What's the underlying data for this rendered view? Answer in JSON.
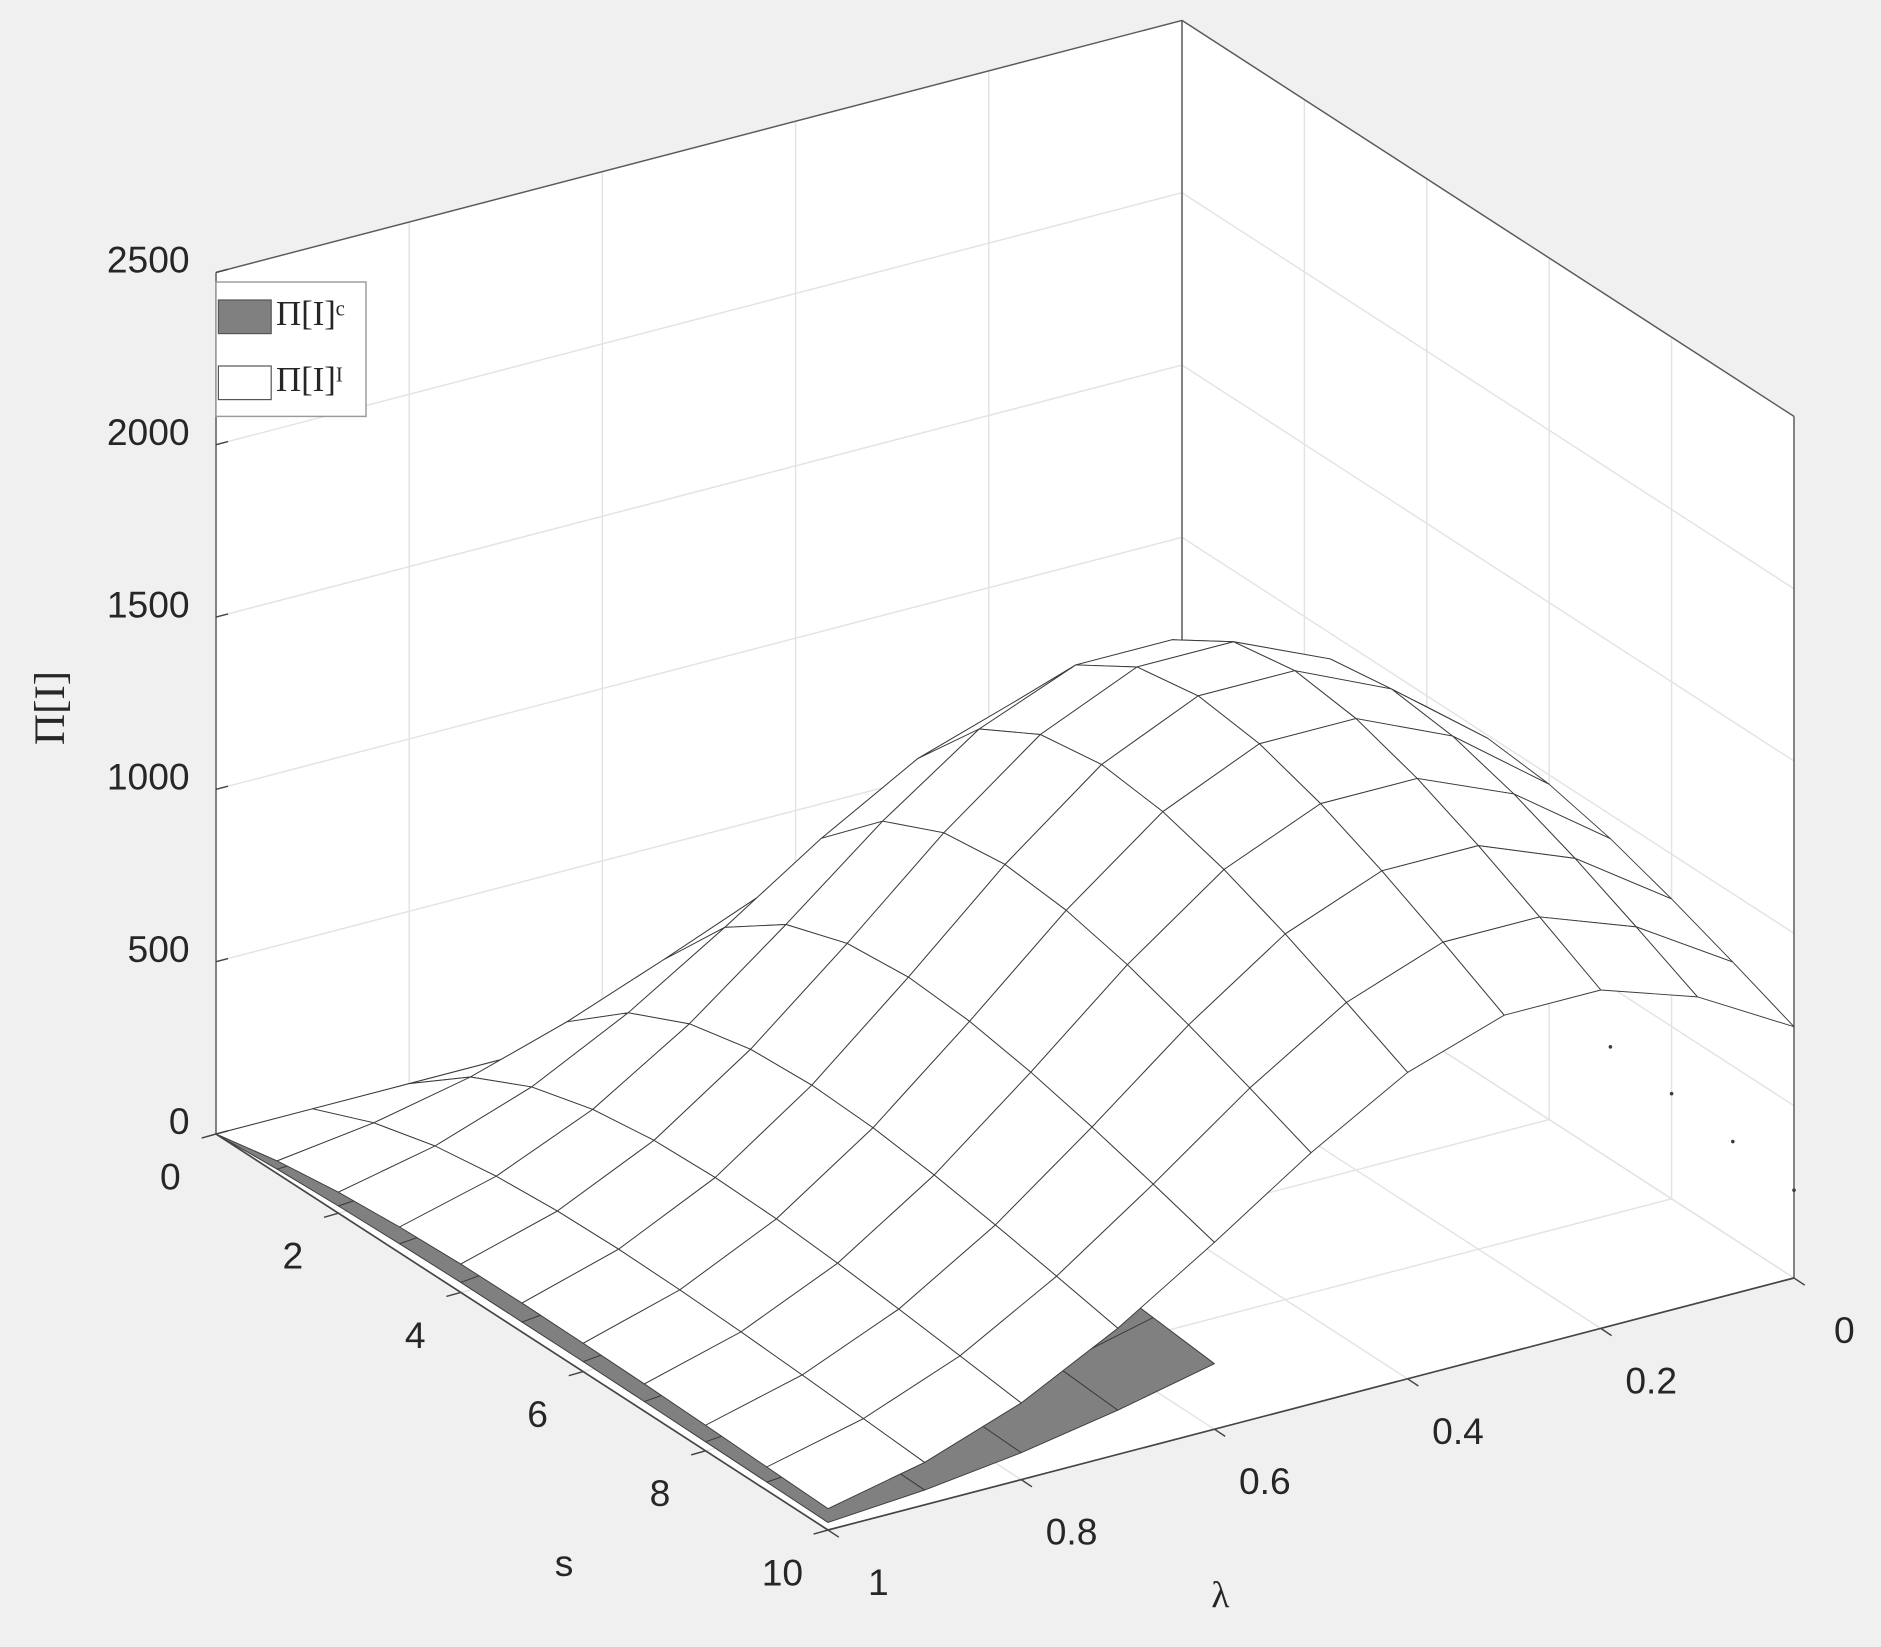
{
  "chart_data": {
    "type": "surface",
    "xlabel": "s",
    "ylabel": "λ",
    "zlabel": "Π[I]",
    "x": [
      0,
      1,
      2,
      3,
      4,
      5,
      6,
      7,
      8,
      9,
      10
    ],
    "y": [
      0,
      0.1,
      0.2,
      0.3,
      0.4,
      0.5,
      0.6,
      0.7,
      0.8,
      0.9,
      1
    ],
    "xlim": [
      0,
      10
    ],
    "ylim": [
      0,
      1
    ],
    "zlim": [
      0,
      2500
    ],
    "xticks": [
      0,
      2,
      4,
      6,
      8,
      10
    ],
    "yticks": [
      0,
      0.2,
      0.4,
      0.6,
      0.8,
      1
    ],
    "zticks": [
      0,
      500,
      1000,
      1500,
      2000,
      2500
    ],
    "grid": true,
    "legend": "upper left",
    "edgecolor": "#3c3c3c",
    "series": [
      {
        "name": "Π[I]ᶜ",
        "color": "#808080",
        "values": [
          [
            0,
            0,
            0,
            0,
            0,
            0,
            0,
            0,
            0,
            0,
            0
          ],
          [
            154,
            188,
            208,
            208,
            188,
            154,
            115,
            77,
            47,
            26,
            13
          ],
          [
            253,
            308,
            340,
            340,
            308,
            253,
            188,
            127,
            77,
            43,
            21
          ],
          [
            310,
            378,
            418,
            418,
            378,
            310,
            231,
            156,
            95,
            52,
            26
          ],
          [
            339,
            413,
            456,
            456,
            413,
            339,
            252,
            170,
            103,
            57,
            29
          ],
          [
            347,
            423,
            467,
            467,
            423,
            347,
            258,
            174,
            106,
            58,
            29
          ],
          [
            341,
            415,
            null,
            null,
            null,
            341,
            253,
            171,
            104,
            57,
            29
          ],
          [
            326,
            null,
            null,
            null,
            null,
            null,
            242,
            163,
            99,
            55,
            28
          ],
          [
            305,
            null,
            null,
            null,
            null,
            null,
            226,
            153,
            93,
            51,
            26
          ],
          [
            281,
            null,
            null,
            null,
            null,
            null,
            209,
            141,
            85,
            47,
            24
          ],
          [
            255,
            null,
            null,
            null,
            null,
            null,
            190,
            128,
            78,
            43,
            22
          ]
        ]
      },
      {
        "name": "Π[I]ᴵ",
        "color": "#ffffff",
        "values": [
          [
            0,
            0,
            0,
            0,
            0,
            0,
            0,
            0,
            0,
            0,
            0
          ],
          [
            441,
            538,
            594,
            594,
            538,
            441,
            328,
            221,
            134,
            74,
            37
          ],
          [
            722,
            881,
            972,
            972,
            881,
            722,
            537,
            362,
            220,
            122,
            61
          ],
          [
            887,
            1081,
            1194,
            1194,
            1081,
            887,
            660,
            445,
            270,
            149,
            75
          ],
          [
            968,
            1180,
            1303,
            1303,
            1180,
            968,
            720,
            486,
            295,
            163,
            82
          ],
          [
            991,
            1208,
            1334,
            1334,
            1208,
            991,
            737,
            497,
            302,
            167,
            84
          ],
          [
            973,
            1186,
            1310,
            1310,
            1186,
            973,
            724,
            488,
            297,
            164,
            82
          ],
          [
            930,
            1133,
            1251,
            1251,
            1133,
            930,
            691,
            466,
            283,
            157,
            79
          ],
          [
            870,
            1061,
            1171,
            1171,
            1061,
            870,
            647,
            436,
            265,
            147,
            74
          ],
          [
            802,
            977,
            1079,
            1079,
            977,
            802,
            596,
            402,
            244,
            135,
            68
          ],
          [
            729,
            889,
            982,
            982,
            889,
            729,
            542,
            366,
            222,
            123,
            62
          ]
        ]
      }
    ]
  }
}
